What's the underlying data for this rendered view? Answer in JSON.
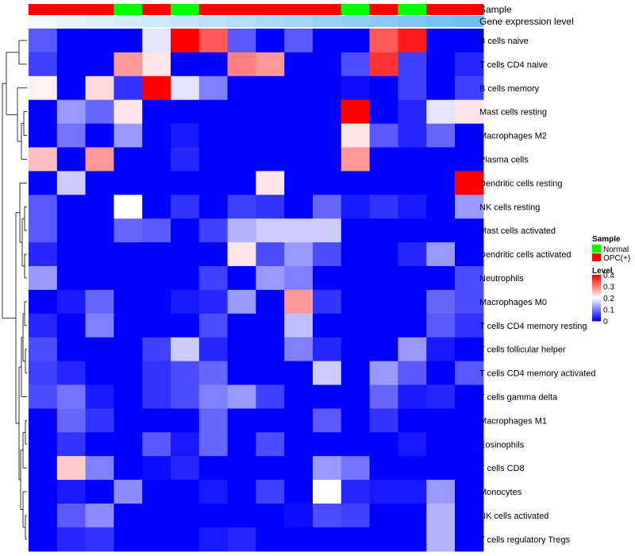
{
  "chart_data": {
    "type": "heatmap",
    "annotation_labels": [
      "Sample",
      "Gene expression level"
    ],
    "sample_groups": [
      "OPC",
      "OPC",
      "OPC",
      "Normal",
      "OPC",
      "Normal",
      "OPC",
      "OPC",
      "OPC",
      "OPC",
      "OPC",
      "Normal",
      "OPC",
      "Normal",
      "OPC",
      "OPC"
    ],
    "expression_level": [
      0.0,
      0.06,
      0.12,
      0.18,
      0.24,
      0.3,
      0.36,
      0.42,
      0.48,
      0.54,
      0.6,
      0.66,
      0.72,
      0.78,
      0.84,
      0.9
    ],
    "rows": [
      "B cells naive",
      "T cells CD4 naive",
      "B cells memory",
      "Mast cells resting",
      "Macrophages M2",
      "Plasma cells",
      "Dendritic cells resting",
      "NK cells resting",
      "Mast cells activated",
      "Dendritic cells activated",
      "Neutrophils",
      "Macrophages M0",
      "T cells CD4 memory resting",
      "T cells follicular helper",
      "T cells CD4 memory activated",
      "T cells gamma delta",
      "Macrophages M1",
      "Eosinophils",
      "T cells CD8",
      "Monocytes",
      "NK cells activated",
      "T cells regulatory  Tregs"
    ],
    "values": [
      [
        0.07,
        0,
        0,
        0,
        0.18,
        0.4,
        0.33,
        0.07,
        0,
        0.07,
        0,
        0,
        0.33,
        0.38,
        0,
        0
      ],
      [
        0.05,
        0,
        0,
        0.28,
        0.22,
        0,
        0,
        0.3,
        0.28,
        0,
        0,
        0.06,
        0.36,
        0.05,
        0,
        0.03
      ],
      [
        0.21,
        0,
        0.23,
        0.04,
        0.4,
        0.18,
        0.1,
        0,
        0,
        0,
        0,
        0.01,
        0,
        0.05,
        0,
        0.05
      ],
      [
        0,
        0.12,
        0.08,
        0.22,
        0,
        0,
        0,
        0,
        0,
        0,
        0,
        0.4,
        0,
        0.03,
        0.18,
        0.22
      ],
      [
        0,
        0.09,
        0,
        0.12,
        0,
        0.02,
        0,
        0,
        0,
        0,
        0,
        0.22,
        0.07,
        0.03,
        0.08,
        0
      ],
      [
        0.25,
        0,
        0.28,
        0,
        0,
        0.03,
        0,
        0,
        0,
        0,
        0,
        0.28,
        0,
        0,
        0,
        0
      ],
      [
        0,
        0.16,
        0,
        0,
        0,
        0,
        0,
        0,
        0.22,
        0,
        0,
        0,
        0,
        0,
        0,
        0.4
      ],
      [
        0.07,
        0,
        0,
        0.2,
        0,
        0.04,
        0,
        0.05,
        0.04,
        0,
        0.08,
        0.02,
        0.04,
        0.02,
        0,
        0.12
      ],
      [
        0.07,
        0,
        0,
        0.08,
        0.07,
        0,
        0.05,
        0.14,
        0.16,
        0.16,
        0.16,
        0,
        0,
        0,
        0,
        0
      ],
      [
        0.03,
        0,
        0,
        0,
        0,
        0,
        0,
        0.22,
        0.06,
        0.12,
        0.06,
        0,
        0,
        0.03,
        0.12,
        0
      ],
      [
        0.12,
        0,
        0,
        0,
        0,
        0,
        0.05,
        0,
        0.12,
        0.1,
        0,
        0,
        0,
        0,
        0,
        0.06
      ],
      [
        0,
        0.02,
        0.08,
        0,
        0,
        0.02,
        0.03,
        0.12,
        0,
        0.28,
        0.04,
        0,
        0,
        0,
        0.08,
        0.06
      ],
      [
        0.03,
        0,
        0.1,
        0,
        0,
        0,
        0.06,
        0,
        0,
        0.15,
        0,
        0,
        0,
        0,
        0.07,
        0.04
      ],
      [
        0.06,
        0,
        0,
        0,
        0.05,
        0.16,
        0.03,
        0,
        0,
        0.1,
        0.03,
        0,
        0,
        0.12,
        0.02,
        0
      ],
      [
        0.05,
        0.03,
        0,
        0,
        0.04,
        0.06,
        0.08,
        0,
        0,
        0,
        0.16,
        0,
        0.12,
        0.07,
        0,
        0.07
      ],
      [
        0.06,
        0.09,
        0.02,
        0,
        0.04,
        0.06,
        0.1,
        0.12,
        0.05,
        0,
        0,
        0,
        0.08,
        0.02,
        0.03,
        0
      ],
      [
        0,
        0.08,
        0.04,
        0,
        0,
        0,
        0.08,
        0,
        0,
        0,
        0.07,
        0,
        0.04,
        0,
        0,
        0
      ],
      [
        0,
        0.04,
        0,
        0,
        0.07,
        0.02,
        0.08,
        0,
        0.06,
        0,
        0,
        0,
        0,
        0.02,
        0,
        0
      ],
      [
        0,
        0.24,
        0.1,
        0,
        0.01,
        0.03,
        0,
        0,
        0,
        0,
        0.12,
        0.09,
        0,
        0,
        0,
        0
      ],
      [
        0,
        0.02,
        0,
        0.11,
        0,
        0,
        0.02,
        0,
        0.05,
        0,
        0.2,
        0.03,
        0.02,
        0.02,
        0.12,
        0
      ],
      [
        0,
        0.07,
        0.11,
        0,
        0,
        0,
        0,
        0,
        0,
        0.01,
        0.06,
        0.05,
        0,
        0,
        0.14,
        0
      ],
      [
        0,
        0.03,
        0.04,
        0,
        0,
        0,
        0.02,
        0.03,
        0,
        0,
        0,
        0,
        0,
        0,
        0.14,
        0
      ]
    ],
    "legend": {
      "sample_title": "Sample",
      "sample_entries": [
        {
          "label": "Normal",
          "color": "#00ff00"
        },
        {
          "label": "OPC(+)",
          "color": "#ff0000"
        }
      ],
      "level_title": "Level",
      "level_ticks": [
        "0.4",
        "0.3",
        "0.2",
        "0.1",
        "0"
      ],
      "level_tick_values": [
        0.4,
        0.3,
        0.2,
        0.1,
        0
      ]
    },
    "colors": {
      "low": "#0000ff",
      "mid": "#ffffff",
      "high": "#ff0000",
      "normal": "#00ff00",
      "opc": "#ff0000",
      "expr_low": "#f0f8ff",
      "expr_high": "#60b8f0"
    },
    "vmin": 0,
    "vmid": 0.2,
    "vmax": 0.4,
    "dendrogram": true
  }
}
